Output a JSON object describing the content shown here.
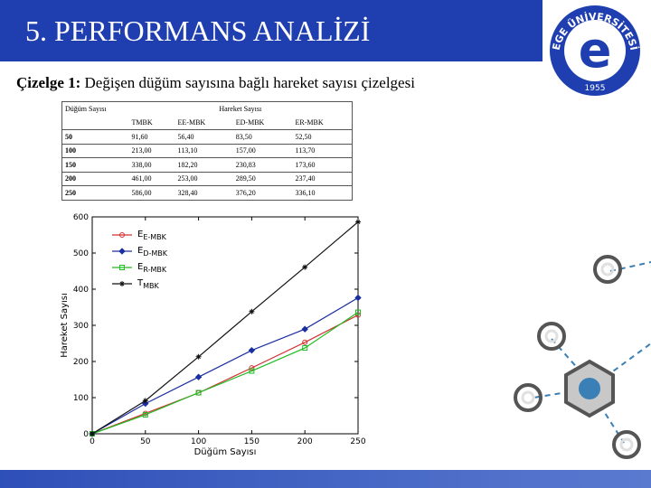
{
  "header": {
    "title": "5. PERFORMANS ANALİZİ"
  },
  "logo": {
    "text": "EGE ÜNİVERSİTESİ",
    "letter": "e",
    "year": "1955"
  },
  "caption": {
    "prefix": "Çizelge 1:",
    "text": "Değişen düğüm sayısına bağlı hareket sayısı çizelgesi"
  },
  "table": {
    "col0_header": "Düğüm Sayısı",
    "group_header": "Hareket Sayısı",
    "sub_headers": [
      "TMBK",
      "EE-MBK",
      "ED-MBK",
      "ER-MBK"
    ],
    "rows": [
      {
        "n": "50",
        "cells": [
          "91,60",
          "56,40",
          "83,50",
          "52,50"
        ]
      },
      {
        "n": "100",
        "cells": [
          "213,00",
          "113,10",
          "157,00",
          "113,70"
        ]
      },
      {
        "n": "150",
        "cells": [
          "338,00",
          "182,20",
          "230,83",
          "173,60"
        ]
      },
      {
        "n": "200",
        "cells": [
          "461,00",
          "253,00",
          "289,50",
          "237,40"
        ]
      },
      {
        "n": "250",
        "cells": [
          "586,00",
          "328,40",
          "376,20",
          "336,10"
        ]
      }
    ]
  },
  "chart_data": {
    "type": "line",
    "x": [
      0,
      50,
      100,
      150,
      200,
      250
    ],
    "xlabel": "Düğüm Sayısı",
    "ylabel": "Hareket Sayısı",
    "xlim": [
      0,
      250
    ],
    "ylim": [
      0,
      600
    ],
    "xticks": [
      "0",
      "50",
      "100",
      "150",
      "200",
      "250"
    ],
    "yticks": [
      "0",
      "100",
      "200",
      "300",
      "400",
      "500",
      "600"
    ],
    "legend_position": "top-left",
    "series": [
      {
        "name": "EE-MBK",
        "name_main": "E",
        "name_sub": "E-MBK",
        "color": "#d03030",
        "marker": "circle",
        "values": [
          0,
          56.4,
          113.1,
          182.2,
          253.0,
          328.4
        ]
      },
      {
        "name": "ED-MBK",
        "name_main": "E",
        "name_sub": "D-MBK",
        "color": "#1a2fa0",
        "marker": "diamond",
        "values": [
          0,
          83.5,
          157.0,
          230.83,
          289.5,
          376.2
        ]
      },
      {
        "name": "ER-MBK",
        "name_main": "E",
        "name_sub": "R-MBK",
        "color": "#22bb22",
        "marker": "square",
        "values": [
          0,
          52.5,
          113.7,
          173.6,
          237.4,
          336.1
        ]
      },
      {
        "name": "TMBK",
        "name_main": "T",
        "name_sub": "MBK",
        "color": "#111111",
        "marker": "star",
        "values": [
          0,
          91.6,
          213.0,
          338.0,
          461.0,
          586.0
        ]
      }
    ]
  }
}
